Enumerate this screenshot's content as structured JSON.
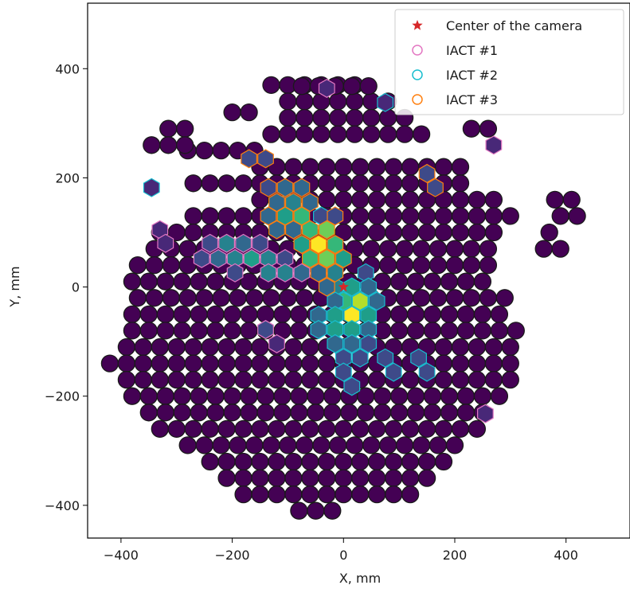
{
  "chart_data": {
    "type": "scatter",
    "title": "",
    "xlabel": "X, mm",
    "ylabel": "Y, mm",
    "xlim": [
      -460,
      515
    ],
    "ylim": [
      -460,
      520
    ],
    "x_ticks": [
      -400,
      -200,
      0,
      200,
      400
    ],
    "y_ticks": [
      -400,
      -200,
      0,
      200,
      400
    ],
    "x_tick_labels": [
      "−400",
      "−200",
      "0",
      "200",
      "400"
    ],
    "y_tick_labels": [
      "−400",
      "−200",
      "0",
      "200",
      "400"
    ],
    "grid": false,
    "legend_position": "top-right",
    "pixel_pitch_mm": 30,
    "camera": {
      "background_pixel_color": "#440154",
      "pixel_edge_color": "#1a1a1a",
      "row_extents_mm": [
        [
          -130,
          40,
          370
        ],
        [
          -100,
          80,
          340
        ],
        [
          -100,
          110,
          310
        ],
        [
          -130,
          160,
          280
        ],
        [
          -280,
          -160,
          250
        ],
        [
          -150,
          220,
          220
        ],
        [
          -270,
          230,
          190
        ],
        [
          -150,
          280,
          160
        ],
        [
          -270,
          300,
          130
        ],
        [
          -330,
          280,
          100
        ],
        [
          -340,
          270,
          70
        ],
        [
          -370,
          270,
          40
        ],
        [
          -380,
          260,
          10
        ],
        [
          -370,
          300,
          -20
        ],
        [
          -380,
          290,
          -50
        ],
        [
          -380,
          320,
          -80
        ],
        [
          -390,
          310,
          -110
        ],
        [
          -420,
          320,
          -140
        ],
        [
          -390,
          310,
          -170
        ],
        [
          -380,
          280,
          -200
        ],
        [
          -350,
          270,
          -230
        ],
        [
          -330,
          240,
          -260
        ],
        [
          -280,
          220,
          -290
        ],
        [
          -240,
          200,
          -320
        ],
        [
          -210,
          150,
          -350
        ],
        [
          -180,
          120,
          -380
        ],
        [
          -80,
          -20,
          -410
        ]
      ],
      "extra_pixels_mm": [
        [
          -75,
          368
        ],
        [
          -45,
          368
        ],
        [
          -15,
          368
        ],
        [
          15,
          368
        ],
        [
          45,
          368
        ],
        [
          -315,
          290
        ],
        [
          -285,
          290
        ],
        [
          -345,
          260
        ],
        [
          -315,
          260
        ],
        [
          -285,
          260
        ],
        [
          -200,
          320
        ],
        [
          -170,
          320
        ],
        [
          260,
          290
        ],
        [
          230,
          290
        ],
        [
          410,
          160
        ],
        [
          380,
          160
        ],
        [
          420,
          130
        ],
        [
          390,
          130
        ],
        [
          370,
          100
        ],
        [
          390,
          70
        ],
        [
          360,
          70
        ]
      ]
    },
    "series": [
      {
        "name": "Center of the camera",
        "marker": "star",
        "color": "#d62728",
        "points": [
          [
            0,
            0
          ]
        ]
      },
      {
        "name": "IACT #1",
        "marker": "hexagon-outline",
        "color": "#e377c2",
        "points": [
          [
            -240,
            80
          ],
          [
            -210,
            80
          ],
          [
            -180,
            80
          ],
          [
            -150,
            80
          ],
          [
            -255,
            52
          ],
          [
            -225,
            52
          ],
          [
            -195,
            52
          ],
          [
            -165,
            52
          ],
          [
            -135,
            52
          ],
          [
            -105,
            52
          ],
          [
            -195,
            26
          ],
          [
            -135,
            26
          ],
          [
            -105,
            26
          ],
          [
            -75,
            26
          ],
          [
            -45,
            26
          ],
          [
            -330,
            105
          ],
          [
            -320,
            80
          ],
          [
            -140,
            -78
          ],
          [
            -120,
            -104
          ],
          [
            -30,
            364
          ],
          [
            270,
            260
          ],
          [
            255,
            -232
          ]
        ],
        "intensity": [
          0.25,
          0.45,
          0.35,
          0.25,
          0.2,
          0.3,
          0.45,
          0.55,
          0.45,
          0.25,
          0.25,
          0.45,
          0.4,
          0.3,
          0.3,
          0.15,
          0.15,
          0.2,
          0.15,
          0.15,
          0.15,
          0.15
        ]
      },
      {
        "name": "IACT #2",
        "marker": "hexagon-outline",
        "color": "#17becf",
        "points": [
          [
            -100,
            155
          ],
          [
            40,
            26
          ],
          [
            -15,
            0
          ],
          [
            15,
            0
          ],
          [
            45,
            0
          ],
          [
            0,
            -26
          ],
          [
            30,
            -26
          ],
          [
            60,
            -26
          ],
          [
            -15,
            -26
          ],
          [
            -45,
            -52
          ],
          [
            -15,
            -52
          ],
          [
            15,
            -52
          ],
          [
            45,
            -52
          ],
          [
            -45,
            -78
          ],
          [
            -15,
            -78
          ],
          [
            15,
            -78
          ],
          [
            45,
            -78
          ],
          [
            -15,
            -104
          ],
          [
            15,
            -104
          ],
          [
            45,
            -104
          ],
          [
            0,
            -130
          ],
          [
            30,
            -130
          ],
          [
            0,
            -156
          ],
          [
            15,
            -182
          ],
          [
            75,
            -130
          ],
          [
            90,
            -156
          ],
          [
            135,
            -130
          ],
          [
            150,
            -156
          ],
          [
            -345,
            182
          ],
          [
            75,
            338
          ],
          [
            -40,
            130
          ]
        ],
        "intensity": [
          0.2,
          0.25,
          0.45,
          0.55,
          0.3,
          0.7,
          0.85,
          0.35,
          0.3,
          0.3,
          0.55,
          0.95,
          0.6,
          0.35,
          0.5,
          0.55,
          0.35,
          0.3,
          0.3,
          0.25,
          0.25,
          0.2,
          0.2,
          0.2,
          0.2,
          0.2,
          0.2,
          0.2,
          0.15,
          0.15,
          0.25
        ]
      },
      {
        "name": "IACT #3",
        "marker": "hexagon-outline",
        "color": "#ff7f0e",
        "points": [
          [
            -135,
            182
          ],
          [
            -105,
            182
          ],
          [
            -75,
            182
          ],
          [
            -120,
            155
          ],
          [
            -90,
            155
          ],
          [
            -60,
            155
          ],
          [
            -135,
            130
          ],
          [
            -105,
            130
          ],
          [
            -75,
            130
          ],
          [
            -15,
            130
          ],
          [
            -90,
            105
          ],
          [
            -60,
            105
          ],
          [
            -30,
            105
          ],
          [
            -120,
            105
          ],
          [
            -75,
            78
          ],
          [
            -45,
            78
          ],
          [
            -15,
            78
          ],
          [
            -60,
            52
          ],
          [
            -30,
            52
          ],
          [
            0,
            52
          ],
          [
            -45,
            26
          ],
          [
            -15,
            26
          ],
          [
            -30,
            0
          ],
          [
            -170,
            235
          ],
          [
            -140,
            235
          ],
          [
            150,
            208
          ],
          [
            165,
            182
          ]
        ],
        "intensity": [
          0.25,
          0.35,
          0.3,
          0.3,
          0.45,
          0.35,
          0.35,
          0.55,
          0.7,
          0.25,
          0.3,
          0.7,
          0.8,
          0.3,
          0.55,
          1.0,
          0.65,
          0.7,
          0.8,
          0.55,
          0.35,
          0.4,
          0.3,
          0.2,
          0.2,
          0.2,
          0.2
        ]
      }
    ],
    "legend": [
      {
        "label": "Center of the camera",
        "marker": "star",
        "color": "#d62728"
      },
      {
        "label": "IACT #1",
        "marker": "circle-outline",
        "color": "#e377c2"
      },
      {
        "label": "IACT #2",
        "marker": "circle-outline",
        "color": "#17becf"
      },
      {
        "label": "IACT #3",
        "marker": "circle-outline",
        "color": "#ff7f0e"
      }
    ],
    "colormap": "viridis"
  }
}
